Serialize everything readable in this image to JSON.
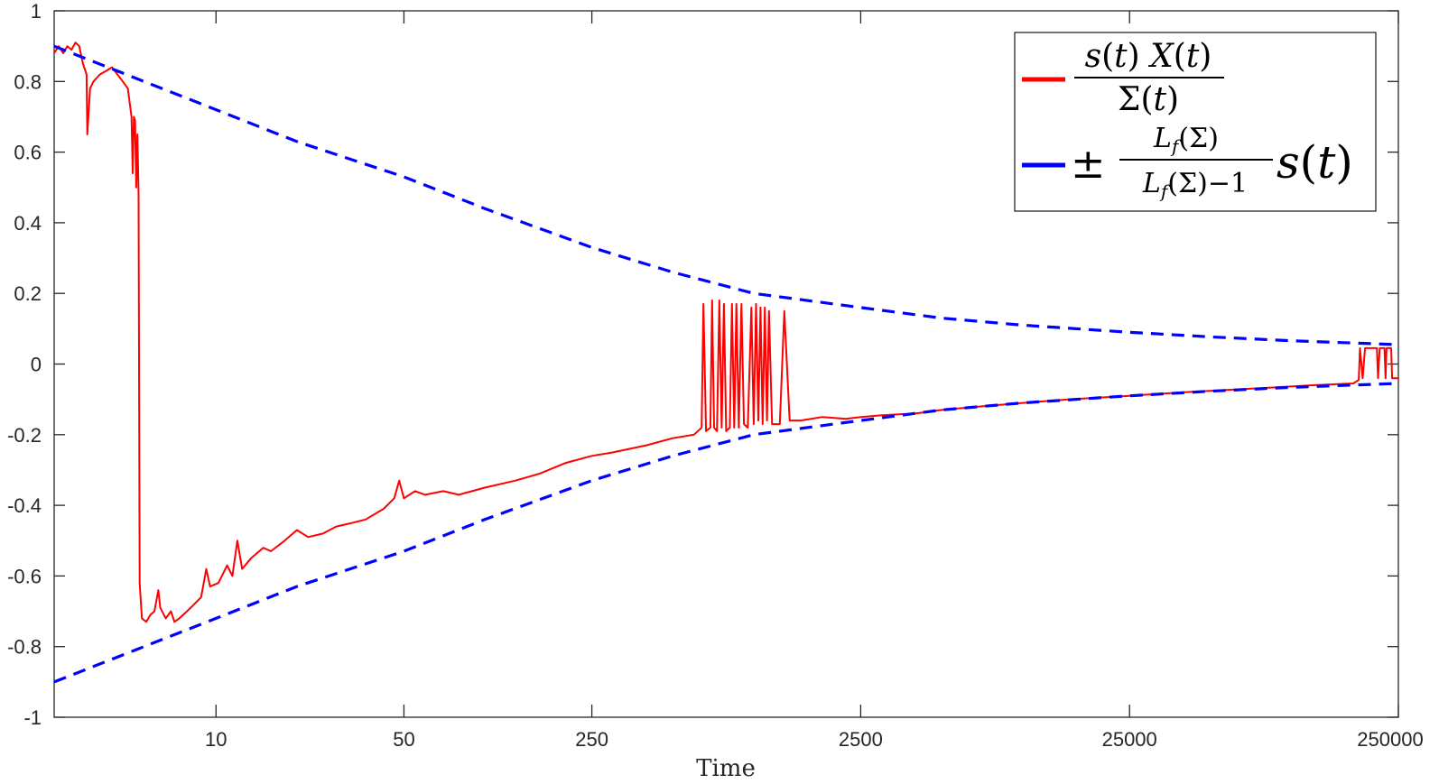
{
  "chart_data": {
    "type": "line",
    "xlabel": "Time",
    "ylabel": "",
    "title": "",
    "x_scale": "log",
    "xlim": [
      2.5,
      250000
    ],
    "ylim": [
      -1,
      1
    ],
    "x_ticks": [
      {
        "value": 10,
        "label": "10"
      },
      {
        "value": 50,
        "label": "50"
      },
      {
        "value": 250,
        "label": "250"
      },
      {
        "value": 2500,
        "label": "2500"
      },
      {
        "value": 25000,
        "label": "25000"
      },
      {
        "value": 250000,
        "label": "250000"
      }
    ],
    "y_ticks": [
      {
        "value": 1,
        "label": "1"
      },
      {
        "value": 0.8,
        "label": "0.8"
      },
      {
        "value": 0.6,
        "label": "0.6"
      },
      {
        "value": 0.4,
        "label": "0.4"
      },
      {
        "value": 0.2,
        "label": "0.2"
      },
      {
        "value": 0,
        "label": "0"
      },
      {
        "value": -0.2,
        "label": "-0.2"
      },
      {
        "value": -0.4,
        "label": "-0.4"
      },
      {
        "value": -0.6,
        "label": "-0.6"
      },
      {
        "value": -0.8,
        "label": "-0.8"
      },
      {
        "value": -1,
        "label": "-1"
      }
    ],
    "legend_position": "top-right",
    "series": [
      {
        "color": "#ff0000",
        "style": "solid",
        "points": [
          [
            2.5,
            0.88
          ],
          [
            2.6,
            0.9
          ],
          [
            2.7,
            0.88
          ],
          [
            2.8,
            0.9
          ],
          [
            2.9,
            0.89
          ],
          [
            3.0,
            0.91
          ],
          [
            3.1,
            0.9
          ],
          [
            3.2,
            0.85
          ],
          [
            3.3,
            0.82
          ],
          [
            3.32,
            0.65
          ],
          [
            3.4,
            0.78
          ],
          [
            3.5,
            0.8
          ],
          [
            3.7,
            0.82
          ],
          [
            3.9,
            0.83
          ],
          [
            4.1,
            0.84
          ],
          [
            4.3,
            0.82
          ],
          [
            4.5,
            0.8
          ],
          [
            4.7,
            0.78
          ],
          [
            4.85,
            0.7
          ],
          [
            4.9,
            0.54
          ],
          [
            4.95,
            0.7
          ],
          [
            5.0,
            0.69
          ],
          [
            5.05,
            0.5
          ],
          [
            5.1,
            0.65
          ],
          [
            5.15,
            0.48
          ],
          [
            5.2,
            -0.62
          ],
          [
            5.3,
            -0.72
          ],
          [
            5.5,
            -0.73
          ],
          [
            5.7,
            -0.71
          ],
          [
            5.9,
            -0.7
          ],
          [
            6.1,
            -0.64
          ],
          [
            6.2,
            -0.69
          ],
          [
            6.5,
            -0.72
          ],
          [
            6.8,
            -0.7
          ],
          [
            7.0,
            -0.73
          ],
          [
            7.3,
            -0.72
          ],
          [
            7.8,
            -0.7
          ],
          [
            8.3,
            -0.68
          ],
          [
            8.8,
            -0.66
          ],
          [
            9.2,
            -0.58
          ],
          [
            9.5,
            -0.63
          ],
          [
            10.2,
            -0.62
          ],
          [
            11.0,
            -0.57
          ],
          [
            11.5,
            -0.6
          ],
          [
            12.0,
            -0.5
          ],
          [
            12.5,
            -0.58
          ],
          [
            13.5,
            -0.55
          ],
          [
            15,
            -0.52
          ],
          [
            16,
            -0.53
          ],
          [
            18,
            -0.5
          ],
          [
            20,
            -0.47
          ],
          [
            22,
            -0.49
          ],
          [
            25,
            -0.48
          ],
          [
            28,
            -0.46
          ],
          [
            32,
            -0.45
          ],
          [
            36,
            -0.44
          ],
          [
            42,
            -0.41
          ],
          [
            46,
            -0.38
          ],
          [
            48,
            -0.33
          ],
          [
            50,
            -0.38
          ],
          [
            55,
            -0.36
          ],
          [
            60,
            -0.37
          ],
          [
            70,
            -0.36
          ],
          [
            80,
            -0.37
          ],
          [
            100,
            -0.35
          ],
          [
            130,
            -0.33
          ],
          [
            160,
            -0.31
          ],
          [
            200,
            -0.28
          ],
          [
            250,
            -0.26
          ],
          [
            300,
            -0.25
          ],
          [
            400,
            -0.23
          ],
          [
            500,
            -0.21
          ],
          [
            600,
            -0.2
          ],
          [
            640,
            -0.18
          ],
          [
            650,
            0.17
          ],
          [
            665,
            -0.19
          ],
          [
            690,
            -0.18
          ],
          [
            700,
            0.18
          ],
          [
            712,
            -0.18
          ],
          [
            730,
            -0.19
          ],
          [
            745,
            0.18
          ],
          [
            760,
            -0.18
          ],
          [
            775,
            0.17
          ],
          [
            790,
            -0.19
          ],
          [
            815,
            -0.18
          ],
          [
            830,
            0.17
          ],
          [
            846,
            -0.18
          ],
          [
            862,
            0.17
          ],
          [
            880,
            -0.18
          ],
          [
            900,
            0.17
          ],
          [
            920,
            -0.17
          ],
          [
            950,
            -0.18
          ],
          [
            980,
            0.16
          ],
          [
            1000,
            -0.17
          ],
          [
            1020,
            0.17
          ],
          [
            1040,
            -0.16
          ],
          [
            1060,
            0.16
          ],
          [
            1080,
            -0.17
          ],
          [
            1100,
            0.16
          ],
          [
            1120,
            -0.16
          ],
          [
            1140,
            0.15
          ],
          [
            1170,
            -0.17
          ],
          [
            1250,
            -0.17
          ],
          [
            1300,
            0.15
          ],
          [
            1360,
            -0.16
          ],
          [
            1500,
            -0.16
          ],
          [
            1800,
            -0.15
          ],
          [
            2200,
            -0.155
          ],
          [
            2500,
            -0.15
          ],
          [
            3000,
            -0.145
          ],
          [
            4000,
            -0.14
          ],
          [
            5000,
            -0.13
          ],
          [
            7000,
            -0.12
          ],
          [
            10000,
            -0.11
          ],
          [
            15000,
            -0.1
          ],
          [
            25000,
            -0.09
          ],
          [
            40000,
            -0.08
          ],
          [
            70000,
            -0.07
          ],
          [
            120000,
            -0.06
          ],
          [
            170000,
            -0.055
          ],
          [
            178000,
            -0.045
          ],
          [
            180000,
            0.045
          ],
          [
            184000,
            -0.04
          ],
          [
            188000,
            0.045
          ],
          [
            208000,
            0.045
          ],
          [
            210000,
            -0.04
          ],
          [
            213000,
            0.045
          ],
          [
            222000,
            0.045
          ],
          [
            224000,
            -0.04
          ],
          [
            226000,
            0.045
          ],
          [
            235000,
            0.045
          ],
          [
            237000,
            -0.04
          ],
          [
            250000,
            -0.04
          ]
        ]
      },
      {
        "color": "#0000ff",
        "style": "dashed",
        "points": [
          [
            2.5,
            0.9
          ],
          [
            5,
            0.81
          ],
          [
            10,
            0.72
          ],
          [
            20,
            0.63
          ],
          [
            50,
            0.53
          ],
          [
            100,
            0.44
          ],
          [
            250,
            0.33
          ],
          [
            500,
            0.26
          ],
          [
            1000,
            0.2
          ],
          [
            2500,
            0.16
          ],
          [
            5000,
            0.13
          ],
          [
            10000,
            0.11
          ],
          [
            25000,
            0.09
          ],
          [
            50000,
            0.077
          ],
          [
            100000,
            0.066
          ],
          [
            250000,
            0.055
          ]
        ]
      },
      {
        "color": "#0000ff",
        "style": "dashed",
        "points": [
          [
            2.5,
            -0.9
          ],
          [
            5,
            -0.81
          ],
          [
            10,
            -0.72
          ],
          [
            20,
            -0.63
          ],
          [
            50,
            -0.53
          ],
          [
            100,
            -0.44
          ],
          [
            250,
            -0.33
          ],
          [
            500,
            -0.26
          ],
          [
            1000,
            -0.2
          ],
          [
            2500,
            -0.16
          ],
          [
            5000,
            -0.13
          ],
          [
            10000,
            -0.11
          ],
          [
            25000,
            -0.09
          ],
          [
            50000,
            -0.077
          ],
          [
            100000,
            -0.066
          ],
          [
            250000,
            -0.055
          ]
        ]
      }
    ]
  }
}
